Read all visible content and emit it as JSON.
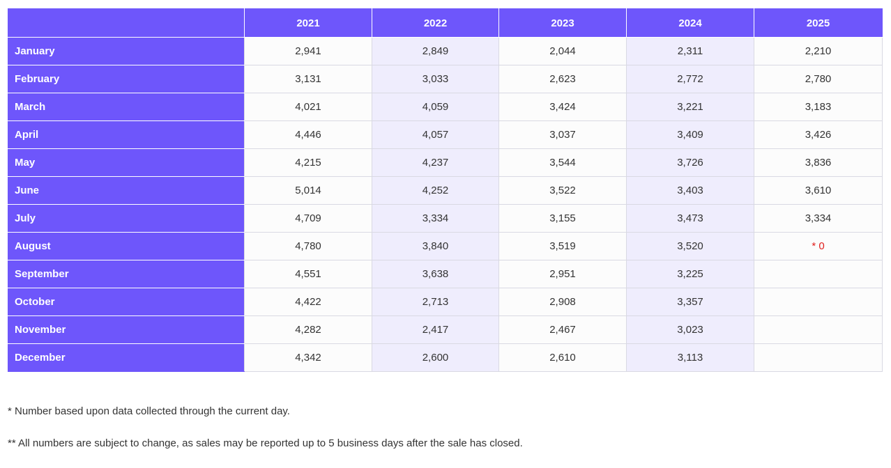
{
  "table": {
    "corner_label": "",
    "years": [
      "2021",
      "2022",
      "2023",
      "2024",
      "2025"
    ],
    "rows": [
      {
        "month": "January",
        "values": [
          "2,941",
          "2,849",
          "2,044",
          "2,311",
          "2,210"
        ]
      },
      {
        "month": "February",
        "values": [
          "3,131",
          "3,033",
          "2,623",
          "2,772",
          "2,780"
        ]
      },
      {
        "month": "March",
        "values": [
          "4,021",
          "4,059",
          "3,424",
          "3,221",
          "3,183"
        ]
      },
      {
        "month": "April",
        "values": [
          "4,446",
          "4,057",
          "3,037",
          "3,409",
          "3,426"
        ]
      },
      {
        "month": "May",
        "values": [
          "4,215",
          "4,237",
          "3,544",
          "3,726",
          "3,836"
        ]
      },
      {
        "month": "June",
        "values": [
          "5,014",
          "4,252",
          "3,522",
          "3,403",
          "3,610"
        ]
      },
      {
        "month": "July",
        "values": [
          "4,709",
          "3,334",
          "3,155",
          "3,473",
          "3,334"
        ]
      },
      {
        "month": "August",
        "values": [
          "4,780",
          "3,840",
          "3,519",
          "3,520",
          "* 0"
        ]
      },
      {
        "month": "September",
        "values": [
          "4,551",
          "3,638",
          "2,951",
          "3,225",
          ""
        ]
      },
      {
        "month": "October",
        "values": [
          "4,422",
          "2,713",
          "2,908",
          "3,357",
          ""
        ]
      },
      {
        "month": "November",
        "values": [
          "4,282",
          "2,417",
          "2,467",
          "3,023",
          ""
        ]
      },
      {
        "month": "December",
        "values": [
          "4,342",
          "2,600",
          "2,610",
          "3,113",
          ""
        ]
      }
    ]
  },
  "footnotes": {
    "note_1": "* Number based upon data collected through the current day.",
    "note_2": "** All numbers are subject to change, as sales may be reported up to 5 business days after the sale has closed."
  },
  "colors": {
    "header_bg": "#6e56fb",
    "shaded_column_bg": "#efedfd",
    "flag_text": "#e0201e"
  }
}
